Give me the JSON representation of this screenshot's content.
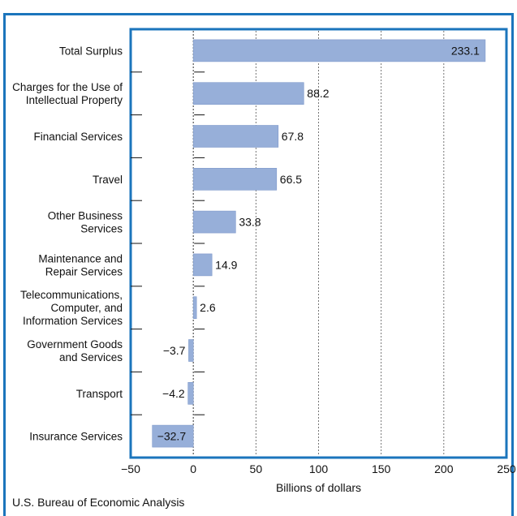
{
  "title": "",
  "source": "U.S. Bureau of Economic Analysis",
  "colors": {
    "frame": "#1b75bc",
    "bar_fill": "#97afd9",
    "bar_edge": "#7f9acb",
    "grid": "#555555",
    "axis": "#1b75bc"
  },
  "chart_data": {
    "type": "bar",
    "orientation": "horizontal",
    "categories": [
      "Total Surplus",
      "Charges for the Use of Intellectual Property",
      "Financial Services",
      "Travel",
      "Other Business Services",
      "Maintenance and Repair Services",
      "Telecommunications, Computer, and Information Services",
      "Government Goods and Services",
      "Transport",
      "Insurance Services"
    ],
    "category_lines": [
      [
        "Total Surplus"
      ],
      [
        "Charges for the Use of",
        "Intellectual Property"
      ],
      [
        "Financial Services"
      ],
      [
        "Travel"
      ],
      [
        "Other Business",
        "Services"
      ],
      [
        "Maintenance and",
        "Repair Services"
      ],
      [
        "Telecommunications,",
        "Computer, and",
        "Information Services"
      ],
      [
        "Government Goods",
        "and Services"
      ],
      [
        "Transport"
      ],
      [
        "Insurance Services"
      ]
    ],
    "values": [
      233.1,
      88.2,
      67.8,
      66.5,
      33.8,
      14.9,
      2.6,
      -3.7,
      -4.2,
      -32.7
    ],
    "value_labels": [
      "233.1",
      "88.2",
      "67.8",
      "66.5",
      "33.8",
      "14.9",
      "2.6",
      "−3.7",
      "−4.2",
      "−32.7"
    ],
    "xlim": [
      -50,
      250
    ],
    "xticks": [
      -50,
      0,
      50,
      100,
      150,
      200,
      250
    ],
    "xtick_labels": [
      "−50",
      "0",
      "50",
      "100",
      "150",
      "200",
      "250"
    ],
    "xlabel": "Billions of dollars",
    "ylabel": "",
    "grid": "vertical dotted"
  }
}
